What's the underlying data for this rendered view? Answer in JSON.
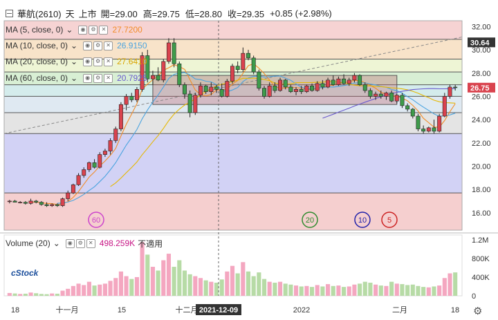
{
  "header": {
    "symbol": "華航(2610)",
    "interval": "天",
    "market": "上市",
    "open_label": "開=29.00",
    "high_label": "高=29.75",
    "low_label": "低=28.80",
    "close_label": "收=29.35",
    "change": "+0.85 (+2.98%)"
  },
  "ma_legend": [
    {
      "label": "MA (5, close, 0)",
      "value": "27.7200",
      "color": "#f28c28"
    },
    {
      "label": "MA (10, close, 0)",
      "value": "26.9150",
      "color": "#4aa3df"
    },
    {
      "label": "MA (20, close, 0)",
      "value": "27.6410",
      "color": "#e6b800"
    },
    {
      "label": "MA (60, close, 0)",
      "value": "20.7925",
      "color": "#6a5acd"
    }
  ],
  "volume_legend": {
    "label": "Volume (20)",
    "value": "498.259K",
    "note": "不適用",
    "color": "#c71585"
  },
  "price_axis": {
    "ticks": [
      "32.00",
      "30.00",
      "28.00",
      "26.00",
      "24.00",
      "22.00",
      "20.00",
      "18.00",
      "16.00"
    ],
    "last_price_tag": "30.64",
    "current_price_tag": "26.75"
  },
  "volume_axis": {
    "ticks": [
      "1.2M",
      "800K",
      "400K",
      "0"
    ]
  },
  "time_axis": {
    "labels": [
      "18",
      "十一月",
      "15",
      "十二月",
      "15",
      "2022",
      "二月",
      "18"
    ],
    "crosshair_date": "2021-12-09"
  },
  "cycle_markers": [
    "60",
    "20",
    "10",
    "5"
  ],
  "logo_text": "cStock",
  "colors": {
    "up": "#d9434e",
    "down": "#3e9b4b",
    "vol_up": "#f4a7c0",
    "vol_down": "#b7dba6"
  },
  "chart_data": {
    "type": "candlestick",
    "ylim": [
      14.5,
      32.5
    ],
    "candles": [
      [
        17.0,
        17.1,
        16.8,
        17.0
      ],
      [
        17.0,
        17.1,
        16.9,
        16.9
      ],
      [
        16.9,
        17.0,
        16.8,
        16.9
      ],
      [
        16.9,
        17.0,
        16.7,
        16.8
      ],
      [
        16.8,
        17.2,
        16.7,
        17.0
      ],
      [
        17.0,
        17.1,
        16.8,
        16.9
      ],
      [
        16.9,
        17.0,
        16.6,
        16.7
      ],
      [
        16.7,
        16.9,
        16.5,
        16.6
      ],
      [
        16.6,
        16.8,
        16.5,
        16.7
      ],
      [
        16.7,
        16.8,
        16.5,
        16.6
      ],
      [
        16.6,
        17.3,
        16.5,
        17.2
      ],
      [
        17.2,
        17.9,
        17.0,
        17.7
      ],
      [
        17.7,
        18.5,
        17.6,
        18.4
      ],
      [
        18.4,
        19.4,
        18.3,
        19.2
      ],
      [
        19.2,
        19.9,
        19.0,
        19.7
      ],
      [
        19.7,
        20.4,
        19.5,
        20.3
      ],
      [
        20.3,
        20.6,
        19.8,
        19.9
      ],
      [
        19.9,
        21.2,
        19.8,
        21.0
      ],
      [
        21.0,
        21.5,
        20.8,
        21.3
      ],
      [
        21.3,
        22.4,
        21.0,
        22.2
      ],
      [
        22.2,
        23.4,
        22.0,
        23.2
      ],
      [
        23.2,
        25.5,
        23.0,
        25.3
      ],
      [
        25.3,
        26.2,
        24.8,
        26.0
      ],
      [
        26.0,
        26.3,
        25.5,
        25.7
      ],
      [
        25.7,
        26.8,
        25.5,
        26.6
      ],
      [
        26.6,
        29.8,
        26.4,
        29.5
      ],
      [
        29.5,
        30.0,
        27.2,
        27.5
      ],
      [
        27.5,
        28.2,
        27.0,
        27.8
      ],
      [
        27.8,
        28.5,
        27.3,
        27.4
      ],
      [
        27.4,
        29.2,
        27.2,
        29.0
      ],
      [
        29.0,
        31.0,
        28.8,
        30.6
      ],
      [
        30.6,
        31.0,
        28.5,
        28.8
      ],
      [
        28.8,
        29.0,
        26.8,
        27.0
      ],
      [
        27.0,
        27.2,
        25.8,
        26.2
      ],
      [
        26.2,
        26.5,
        24.2,
        24.6
      ],
      [
        24.6,
        26.3,
        24.4,
        26.1
      ],
      [
        26.1,
        27.2,
        25.9,
        26.9
      ],
      [
        26.9,
        27.0,
        26.2,
        26.4
      ],
      [
        26.4,
        27.2,
        26.1,
        26.8
      ],
      [
        26.8,
        27.0,
        26.3,
        26.6
      ],
      [
        26.6,
        27.1,
        25.9,
        26.0
      ],
      [
        26.0,
        27.5,
        25.9,
        27.3
      ],
      [
        27.3,
        28.8,
        27.1,
        28.6
      ],
      [
        28.6,
        29.0,
        28.0,
        28.3
      ],
      [
        28.3,
        30.2,
        28.1,
        29.7
      ],
      [
        29.7,
        30.0,
        29.1,
        29.3
      ],
      [
        29.3,
        29.5,
        27.9,
        28.1
      ],
      [
        28.1,
        28.3,
        26.5,
        26.7
      ],
      [
        26.7,
        26.9,
        25.8,
        26.0
      ],
      [
        26.0,
        27.2,
        25.9,
        26.9
      ],
      [
        26.9,
        27.2,
        26.3,
        26.5
      ],
      [
        26.5,
        27.6,
        26.4,
        27.4
      ],
      [
        27.4,
        27.5,
        26.6,
        26.8
      ],
      [
        26.8,
        27.0,
        26.3,
        26.4
      ],
      [
        26.4,
        26.8,
        26.1,
        26.6
      ],
      [
        26.6,
        26.9,
        26.2,
        26.4
      ],
      [
        26.4,
        27.0,
        26.3,
        26.9
      ],
      [
        26.9,
        27.1,
        26.4,
        26.5
      ],
      [
        26.5,
        27.3,
        26.4,
        27.1
      ],
      [
        27.1,
        27.4,
        26.6,
        26.8
      ],
      [
        26.8,
        27.6,
        26.7,
        27.4
      ],
      [
        27.4,
        27.8,
        26.9,
        27.0
      ],
      [
        27.0,
        27.7,
        26.9,
        27.5
      ],
      [
        27.5,
        27.9,
        27.0,
        27.1
      ],
      [
        27.1,
        27.6,
        26.9,
        27.4
      ],
      [
        27.4,
        28.0,
        27.2,
        27.8
      ],
      [
        27.8,
        27.9,
        26.9,
        27.0
      ],
      [
        27.0,
        27.2,
        26.3,
        26.5
      ],
      [
        26.5,
        26.7,
        25.8,
        26.0
      ],
      [
        26.0,
        26.4,
        25.7,
        26.2
      ],
      [
        26.2,
        26.5,
        25.8,
        26.0
      ],
      [
        26.0,
        26.4,
        25.7,
        26.3
      ],
      [
        26.3,
        26.5,
        25.5,
        25.6
      ],
      [
        25.6,
        26.2,
        25.4,
        26.1
      ],
      [
        26.1,
        26.3,
        25.0,
        25.2
      ],
      [
        25.2,
        25.4,
        24.7,
        24.9
      ],
      [
        24.9,
        25.0,
        24.1,
        24.3
      ],
      [
        24.3,
        24.5,
        23.0,
        23.2
      ],
      [
        23.2,
        23.5,
        22.8,
        23.0
      ],
      [
        23.0,
        23.4,
        22.9,
        23.3
      ],
      [
        23.3,
        24.0,
        22.8,
        23.0
      ],
      [
        23.0,
        24.5,
        22.9,
        24.3
      ],
      [
        24.3,
        26.3,
        24.2,
        26.0
      ],
      [
        26.0,
        27.0,
        25.8,
        26.8
      ],
      [
        26.8,
        27.0,
        26.5,
        26.75
      ]
    ],
    "volume": [
      60,
      50,
      40,
      45,
      70,
      55,
      40,
      35,
      50,
      45,
      110,
      150,
      210,
      260,
      230,
      300,
      220,
      240,
      260,
      320,
      380,
      520,
      420,
      360,
      400,
      1150,
      880,
      620,
      540,
      760,
      900,
      620,
      760,
      540,
      460,
      420,
      380,
      330,
      300,
      280,
      350,
      520,
      640,
      480,
      720,
      520,
      420,
      500,
      360,
      300,
      280,
      300,
      260,
      240,
      220,
      200,
      210,
      190,
      230,
      200,
      250,
      210,
      220,
      190,
      200,
      240,
      260,
      300,
      280,
      240,
      220,
      210,
      300,
      260,
      250,
      230,
      240,
      210,
      190,
      180,
      200,
      220,
      380,
      480,
      500
    ],
    "levels": [
      30.9,
      29.2,
      28.1,
      27.0,
      26.0,
      24.6,
      22.8,
      17.7
    ],
    "current_price": 26.75,
    "last_price": 30.64
  }
}
